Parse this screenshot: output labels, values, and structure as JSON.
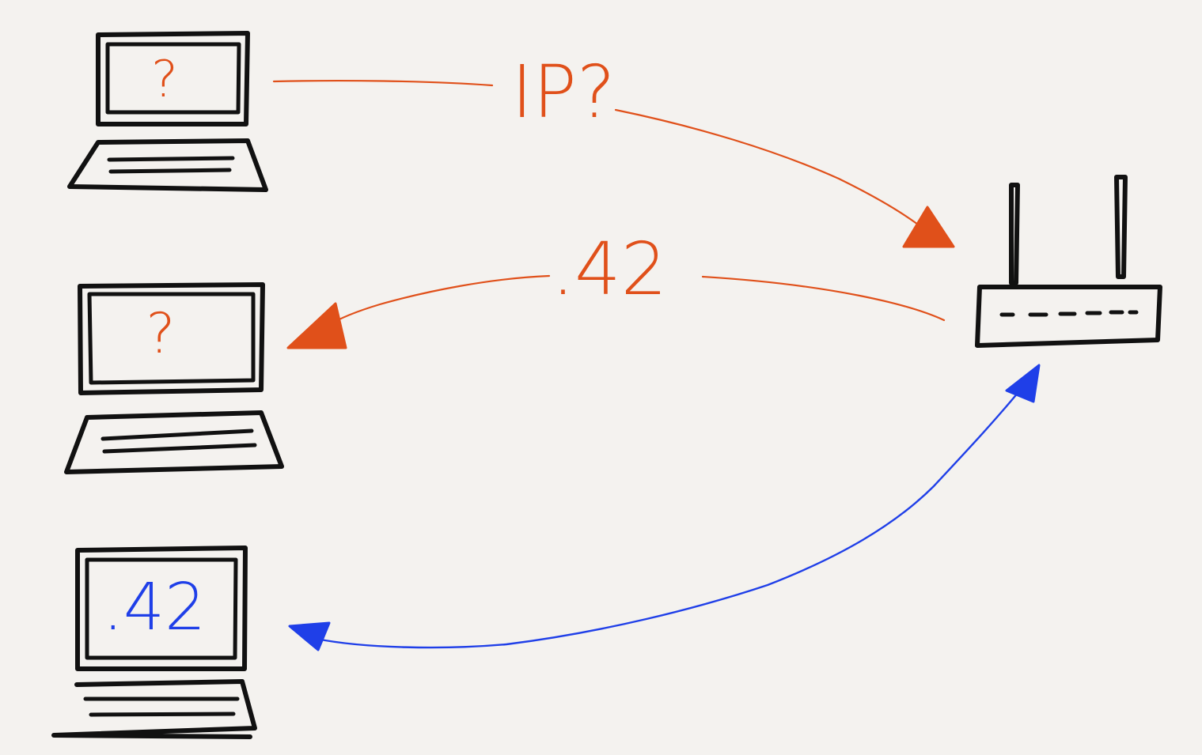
{
  "colors": {
    "background": "#f4f2ef",
    "ink": "#111111",
    "request": "#e0501a",
    "response": "#e0501a",
    "assigned": "#1f3fe8"
  },
  "devices": {
    "laptop_top": {
      "screen_text": "?"
    },
    "laptop_middle": {
      "screen_text": "?"
    },
    "laptop_bottom": {
      "screen_text": ".42"
    },
    "router": {
      "icon": "router-icon"
    }
  },
  "arrows": {
    "request": {
      "label": "IP?"
    },
    "response": {
      "label": ".42"
    },
    "established": {
      "label": ""
    }
  }
}
